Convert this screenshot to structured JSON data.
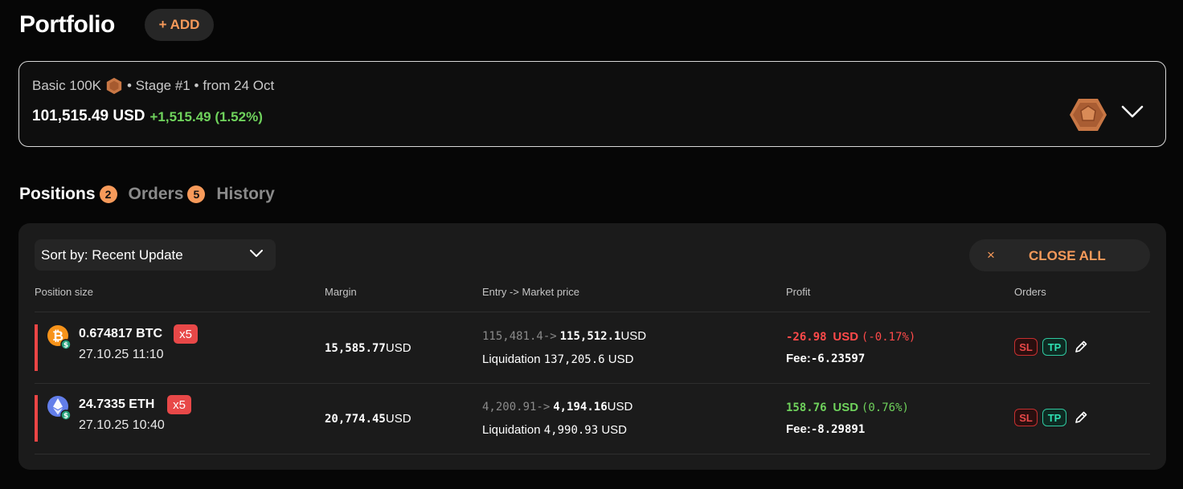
{
  "header": {
    "title": "Portfolio",
    "add_label": "+ ADD"
  },
  "account": {
    "plan": "Basic 100K",
    "stage": "• Stage #1 •",
    "since": "from 24 Oct",
    "balance": "101,515.49 USD",
    "gain": "+1,515.49 (1.52%)",
    "badge_icon": "bronze-hexagon-badge",
    "expand_icon": "chevron-down-icon"
  },
  "tabs": [
    {
      "label": "Positions",
      "count": "2",
      "active": true
    },
    {
      "label": "Orders",
      "count": "5",
      "active": false
    },
    {
      "label": "History",
      "count": "",
      "active": false
    }
  ],
  "toolbar": {
    "sort_label": "Sort by: Recent Update",
    "close_icon": "×",
    "close_all_label": "CLOSE ALL"
  },
  "columns": [
    "Position size",
    "Margin",
    "Entry -> Market price",
    "Profit",
    "Orders"
  ],
  "positions": [
    {
      "quantity": "0.674817 BTC",
      "leverage": "x5",
      "date": "27.10.25 11:10",
      "margin_value": "15,585.77",
      "margin_unit": "USD",
      "entry_price": "115,481.4->",
      "market_price": "115,512.1",
      "price_unit": "USD",
      "liquidation_label": "Liquidation",
      "liquidation_value": "137,205.6",
      "liquidation_unit": "USD",
      "profit_value": "-26.98",
      "profit_unit": "USD",
      "profit_pct": "(-0.17%)",
      "fee_label": "Fee:",
      "fee_value": "-6.23597",
      "sl_label": "SL",
      "tp_label": "TP",
      "coin_icon": "bitcoin-icon",
      "colors": {
        "coin": "#f7931a",
        "profit": "#ff4a4a"
      }
    },
    {
      "quantity": "24.7335 ETH",
      "leverage": "x5",
      "date": "27.10.25 10:40",
      "margin_value": "20,774.45",
      "margin_unit": "USD",
      "entry_price": "4,200.91->",
      "market_price": "4,194.16",
      "price_unit": "USD",
      "liquidation_label": "Liquidation",
      "liquidation_value": "4,990.93",
      "liquidation_unit": "USD",
      "profit_value": "158.76",
      "profit_unit": "USD",
      "profit_pct": "(0.76%)",
      "fee_label": "Fee:",
      "fee_value": "-8.29891",
      "sl_label": "SL",
      "tp_label": "TP",
      "coin_icon": "ethereum-icon",
      "colors": {
        "coin": "#627eea",
        "profit": "#6fd25c"
      }
    }
  ]
}
